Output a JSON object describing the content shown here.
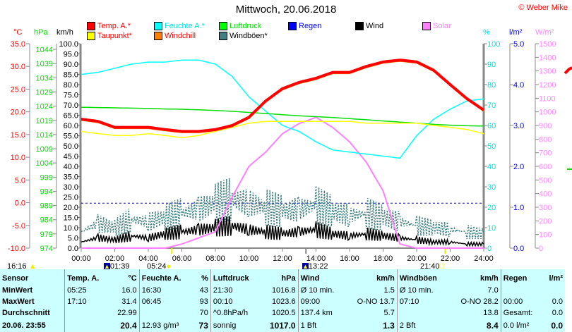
{
  "title": "Mittwoch, 20.06.2018",
  "copyright": "© Weber Mike",
  "legend": [
    {
      "label": "Temp. A.*",
      "color": "#ff0000",
      "text": "#ff0000"
    },
    {
      "label": "Feuchte A.*",
      "color": "#00ffff",
      "text": "#00e0e0"
    },
    {
      "label": "Luftdruck",
      "color": "#00ff00",
      "text": "#00dd00"
    },
    {
      "label": "Regen",
      "color": "#0000ff",
      "text": "#0000ff"
    },
    {
      "label": "Wind",
      "color": "#000000",
      "text": "#000000"
    },
    {
      "label": "Solar",
      "color": "#ff80ff",
      "text": "#ff80ff"
    },
    {
      "label": "Taupunkt*",
      "color": "#ffff00",
      "text": "#ff0000"
    },
    {
      "label": "Windchill",
      "color": "#ff8000",
      "text": "#ff0000"
    },
    {
      "label": "Windböen*",
      "color": "#408080",
      "text": "#000000"
    }
  ],
  "units": {
    "c": "°C",
    "hpa": "hPa",
    "kmh": "km/h",
    "pct": "%",
    "rain": "l/m²",
    "solar": "W/m²"
  },
  "axes": {
    "c": [
      "35.0",
      "30.0",
      "25.0",
      "20.0",
      "15.0",
      "10.0",
      "5.0",
      "0.0",
      "-5.0",
      "-10.0"
    ],
    "hpa": [
      "1044",
      "1039",
      "1034",
      "1029",
      "1024",
      "1019",
      "1014",
      "1009",
      "1004",
      "999",
      "994",
      "989",
      "984",
      "979",
      "974"
    ],
    "kmh": [
      "100.0",
      "95.0",
      "90.0",
      "85.0",
      "80.0",
      "75.0",
      "70.0",
      "65.0",
      "60.0",
      "55.0",
      "50.0",
      "45.0",
      "40.0",
      "35.0",
      "30.0",
      "25.0",
      "20.0",
      "15.0",
      "10.0",
      "5.0",
      "0.0"
    ],
    "pct": [
      "100",
      "90",
      "80",
      "70",
      "60",
      "50",
      "40",
      "30",
      "20",
      "10",
      "0"
    ],
    "rain": [
      "5.0",
      "4.0",
      "3.0",
      "2.0",
      "1.0",
      "0.0"
    ],
    "solar": [
      "1500",
      "1400",
      "1300",
      "1200",
      "1100",
      "1000",
      "900",
      "800",
      "700",
      "600",
      "500",
      "400",
      "300",
      "200",
      "100",
      "0"
    ],
    "time": [
      "00:00",
      "02:00",
      "04:00",
      "06:00",
      "08:00",
      "10:00",
      "12:00",
      "14:00",
      "16:00",
      "18:00",
      "20:00",
      "22:00",
      "24:00"
    ]
  },
  "chart_data": {
    "type": "line",
    "x_hours": [
      0,
      1,
      2,
      3,
      4,
      5,
      6,
      7,
      8,
      9,
      10,
      11,
      12,
      13,
      14,
      15,
      16,
      17,
      18,
      19,
      20,
      21,
      22,
      23,
      24
    ],
    "series": [
      {
        "name": "Temp. A.",
        "unit": "°C",
        "color": "#ff0000",
        "values": [
          18.4,
          17.9,
          16.6,
          16.6,
          16.6,
          16.1,
          15.7,
          15.7,
          16.1,
          17.0,
          18.8,
          22.4,
          25.1,
          26.5,
          27.4,
          28.7,
          28.7,
          30.0,
          31.0,
          31.4,
          31.0,
          29.2,
          26.0,
          22.9,
          20.4
        ]
      },
      {
        "name": "Taupunkt",
        "unit": "°C",
        "color": "#ffff00",
        "values": [
          15.7,
          15.2,
          14.8,
          14.8,
          15.2,
          14.8,
          14.3,
          14.8,
          15.7,
          16.6,
          17.5,
          17.9,
          17.9,
          17.9,
          17.9,
          17.9,
          17.9,
          17.5,
          17.5,
          17.5,
          17.5,
          17.0,
          16.6,
          16.1,
          15.2
        ]
      },
      {
        "name": "Feuchte A.",
        "unit": "%",
        "color": "#00ffff",
        "values": [
          85,
          86,
          88,
          90,
          91,
          91,
          92,
          92,
          90,
          84,
          74,
          67,
          60,
          57,
          52,
          48,
          47,
          46,
          45,
          44,
          55,
          63,
          68,
          72,
          73
        ]
      },
      {
        "name": "Luftdruck",
        "unit": "hPa",
        "color": "#00dd00",
        "values": [
          1023.6,
          1023.5,
          1023.4,
          1023.3,
          1023.2,
          1023.0,
          1022.9,
          1022.7,
          1022.5,
          1022.2,
          1021.8,
          1021.4,
          1021.0,
          1020.6,
          1020.3,
          1020.0,
          1019.6,
          1019.2,
          1018.8,
          1018.4,
          1018.0,
          1017.6,
          1017.3,
          1017.1,
          1017.0
        ]
      },
      {
        "name": "Solar",
        "unit": "W/m²",
        "color": "#ff80ff",
        "values": [
          0,
          0,
          0,
          0,
          0,
          0,
          30,
          75,
          120,
          375,
          600,
          705,
          840,
          915,
          960,
          885,
          780,
          630,
          420,
          30,
          0,
          0,
          0,
          0,
          0
        ]
      },
      {
        "name": "Wind",
        "unit": "km/h",
        "color": "#000000",
        "values": [
          3,
          5,
          4,
          6,
          5,
          7,
          8,
          9,
          10,
          11,
          9,
          8,
          7,
          8,
          9,
          7,
          6,
          7,
          6,
          5,
          4,
          3,
          3,
          2,
          2
        ]
      },
      {
        "name": "Windböen",
        "unit": "km/h",
        "color": "#408080",
        "values": [
          8,
          12,
          10,
          14,
          13,
          15,
          17,
          19,
          22,
          24,
          22,
          20,
          18,
          19,
          21,
          18,
          16,
          17,
          15,
          13,
          11,
          10,
          9,
          8,
          7
        ]
      }
    ],
    "rain_line": 1.1,
    "xlim": [
      0,
      24
    ]
  },
  "astro": [
    {
      "label": "16:16",
      "icon": "moon-phase-icon"
    },
    {
      "label": "01:39",
      "icon": "moonrise-icon"
    },
    {
      "label": "05:24",
      "icon": "sunrise-icon"
    },
    {
      "label": "13:22",
      "icon": "moonset-icon"
    },
    {
      "label": "21:40",
      "icon": "sunset-icon"
    }
  ],
  "table": {
    "header": [
      "Sensor",
      "Temp. A.",
      "°C",
      "Feuchte A.",
      "%",
      "Luftdruck",
      "hPa",
      "Wind",
      "km/h",
      "Windböen",
      "km/h",
      "Regen",
      "l/m²"
    ],
    "rows": [
      [
        "MinWert",
        "05:25",
        "16.0",
        "16:30",
        "43",
        "21:30",
        "1016.8",
        "Ø 10 min.",
        "1.5",
        "Ø 10 min.",
        "7.0",
        "",
        ""
      ],
      [
        "MaxWert",
        "17:10",
        "31.4",
        "06:45",
        "93",
        "00:10",
        "1023.6",
        "09:00",
        "O-NO 13.7",
        "07:10",
        "O-NO 28.2",
        "00:00",
        "0.0"
      ],
      [
        "Durchschnitt",
        "",
        "22.99",
        "",
        "70",
        "^0.8hPa/h",
        "1020.5",
        "137.4 km",
        "5.7",
        "",
        "13.8",
        "Gesamt:",
        "0.0"
      ],
      [
        "20.06. 23:55",
        "",
        "20.4",
        "12.93 g/m³",
        "73",
        "sonnig",
        "1017.0",
        "1 Bft",
        "1.3",
        "2 Bft",
        "8.4",
        "0.0 l/m²",
        "0.0"
      ]
    ]
  }
}
